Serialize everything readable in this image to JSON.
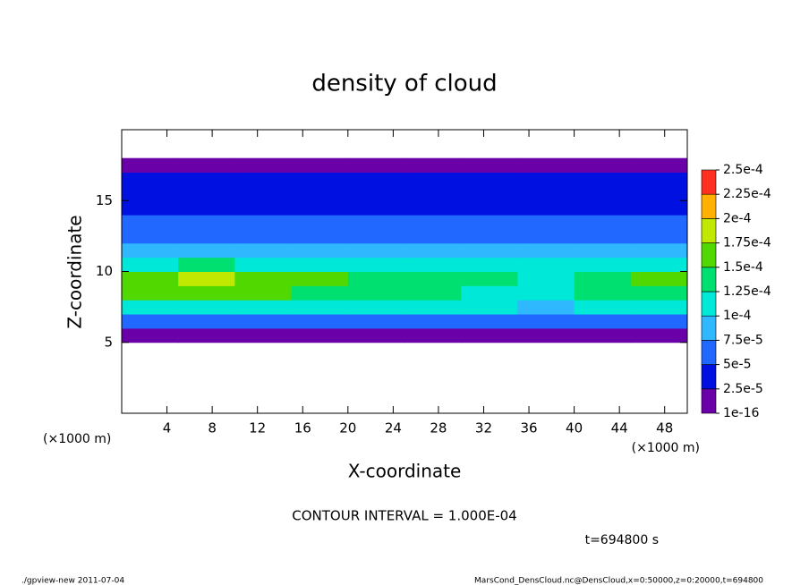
{
  "chart_data": {
    "type": "contour",
    "title": "density of cloud",
    "xlabel": "X-coordinate",
    "ylabel": "Z-coordinate",
    "x_unit_left": "(×1000 m)",
    "x_unit_right": "(×1000 m)",
    "annotation": "CONTOUR INTERVAL = 1.000E-04",
    "time_label": "t=694800 s",
    "footer_left": "./gpview-new  2011-07-04",
    "footer_right": "MarsCond_DensCloud.nc@DensCloud,x=0:50000,z=0:20000,t=694800",
    "xlim": [
      0,
      50
    ],
    "ylim": [
      0,
      20
    ],
    "xticks": [
      4,
      8,
      12,
      16,
      20,
      24,
      28,
      32,
      36,
      40,
      44,
      48
    ],
    "yticks": [
      5,
      10,
      15
    ],
    "x_edges": [
      0,
      5,
      10,
      15,
      20,
      25,
      30,
      35,
      40,
      45,
      50
    ],
    "z_edges": [
      4,
      5,
      6,
      7,
      8,
      9,
      10,
      11,
      12,
      13,
      14,
      15,
      16,
      17,
      18,
      19
    ],
    "values": [
      [
        0,
        0,
        0,
        0,
        0,
        0,
        0,
        0,
        0,
        0
      ],
      [
        2e-05,
        2e-05,
        2e-05,
        2e-05,
        2e-05,
        2e-05,
        2e-05,
        2e-05,
        2e-05,
        2e-05
      ],
      [
        6e-05,
        6e-05,
        6e-05,
        6e-05,
        6e-05,
        6e-05,
        6e-05,
        6e-05,
        6e-05,
        6e-05
      ],
      [
        0.00011,
        0.00012,
        0.00011,
        0.0001,
        0.0001,
        0.0001,
        0.0001,
        9e-05,
        0.0001,
        0.00011
      ],
      [
        0.00015,
        0.00017,
        0.00016,
        0.00014,
        0.00013,
        0.00013,
        0.00012,
        0.00011,
        0.00013,
        0.00014
      ],
      [
        0.00016,
        0.00018,
        0.00017,
        0.00015,
        0.00014,
        0.00014,
        0.00013,
        0.00012,
        0.00014,
        0.00015
      ],
      [
        0.00012,
        0.00013,
        0.00012,
        0.00011,
        0.00011,
        0.0001,
        0.0001,
        0.0001,
        0.00011,
        0.00012
      ],
      [
        8e-05,
        8e-05,
        8e-05,
        8e-05,
        8e-05,
        8e-05,
        8e-05,
        8e-05,
        8e-05,
        8e-05
      ],
      [
        7e-05,
        7e-05,
        7e-05,
        7e-05,
        7e-05,
        7e-05,
        7e-05,
        7e-05,
        7e-05,
        7e-05
      ],
      [
        6e-05,
        6e-05,
        6e-05,
        6e-05,
        6e-05,
        6e-05,
        6e-05,
        6e-05,
        6e-05,
        6e-05
      ],
      [
        4.5e-05,
        4.5e-05,
        4.5e-05,
        4.5e-05,
        4.5e-05,
        4.5e-05,
        4.5e-05,
        4.5e-05,
        4.5e-05,
        4.5e-05
      ],
      [
        4e-05,
        4e-05,
        4e-05,
        4e-05,
        4e-05,
        4e-05,
        4e-05,
        4e-05,
        4e-05,
        4e-05
      ],
      [
        3e-05,
        3e-05,
        3e-05,
        3e-05,
        3e-05,
        3e-05,
        3e-05,
        3e-05,
        3e-05,
        3e-05
      ],
      [
        1e-05,
        1e-05,
        1e-05,
        1e-05,
        1e-05,
        1e-05,
        1e-05,
        1e-05,
        1e-05,
        1e-05
      ],
      [
        0,
        0,
        0,
        0,
        0,
        0,
        0,
        0,
        0,
        0
      ]
    ],
    "levels": [
      {
        "value": 1e-16,
        "label": "1e-16"
      },
      {
        "value": 2.5e-05,
        "label": "2.5e-5"
      },
      {
        "value": 5e-05,
        "label": "5e-5"
      },
      {
        "value": 7.5e-05,
        "label": "7.5e-5"
      },
      {
        "value": 0.0001,
        "label": "1e-4"
      },
      {
        "value": 0.000125,
        "label": "1.25e-4"
      },
      {
        "value": 0.00015,
        "label": "1.5e-4"
      },
      {
        "value": 0.000175,
        "label": "1.75e-4"
      },
      {
        "value": 0.0002,
        "label": "2e-4"
      },
      {
        "value": 0.000225,
        "label": "2.25e-4"
      },
      {
        "value": 0.00025,
        "label": "2.5e-4"
      }
    ],
    "colors": [
      "#6a00a8",
      "#0010e0",
      "#2068ff",
      "#30b8ff",
      "#00e8d8",
      "#00e070",
      "#50d800",
      "#c0e800",
      "#ffb000",
      "#ff3020"
    ]
  }
}
